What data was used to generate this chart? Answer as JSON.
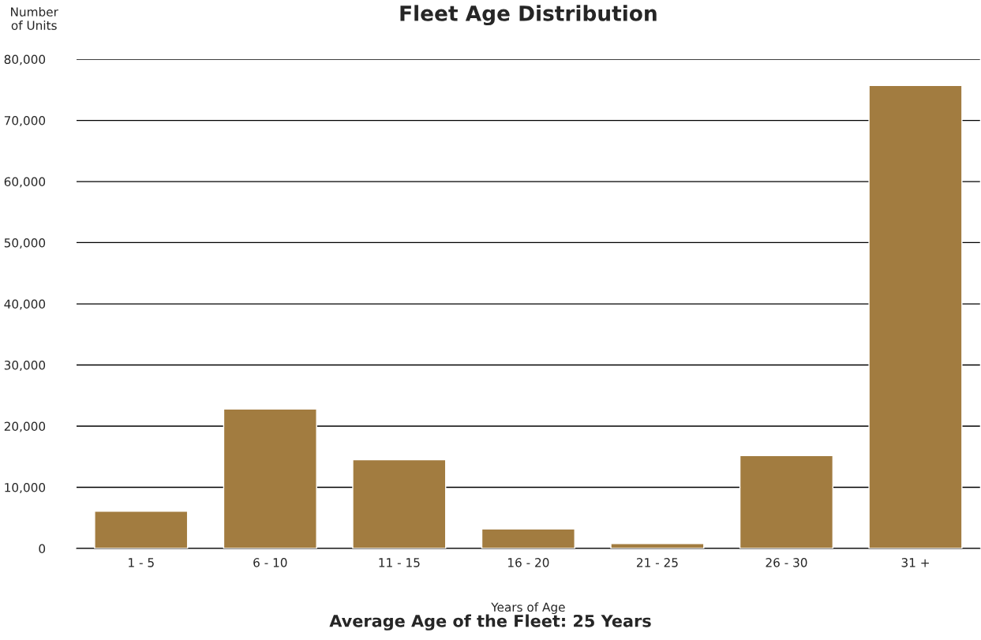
{
  "chart_data": {
    "type": "bar",
    "title": "Fleet Age Distribution",
    "xlabel": "Years of Age",
    "ylabel": "Number\nof Units",
    "categories": [
      "1 - 5",
      "6 - 10",
      "11 - 15",
      "16 - 20",
      "21 - 25",
      "26 - 30",
      "31 +"
    ],
    "values": [
      6100,
      22800,
      14500,
      3200,
      800,
      15200,
      75700
    ],
    "color": "#a27c40",
    "ylim": [
      0,
      80000
    ],
    "yticks": [
      {
        "value": 0,
        "label": "0"
      },
      {
        "value": 10000,
        "label": "10,000"
      },
      {
        "value": 20000,
        "label": "20,000"
      },
      {
        "value": 30000,
        "label": "30,000"
      },
      {
        "value": 40000,
        "label": "40,000"
      },
      {
        "value": 50000,
        "label": "50,000"
      },
      {
        "value": 60000,
        "label": "60,000"
      },
      {
        "value": 70000,
        "label": "70,000"
      },
      {
        "value": 80000,
        "label": "80,000"
      }
    ],
    "grid": "y",
    "annotations": [
      "Average Age of the Fleet: 25 Years"
    ]
  }
}
